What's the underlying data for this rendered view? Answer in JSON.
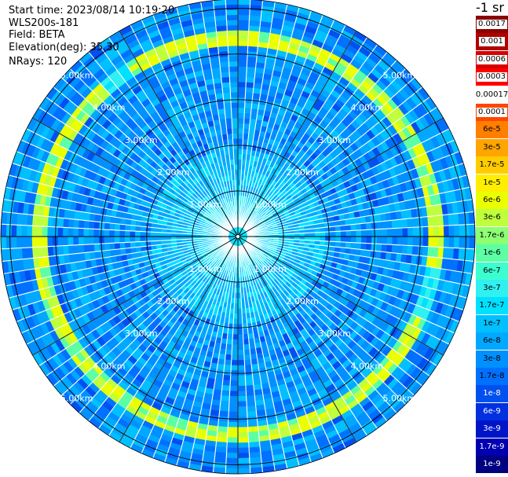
{
  "header": {
    "start_time": "Start time: 2023/08/14 10:19:20",
    "device": "WLS200s-181",
    "field": "Field: BETA",
    "elevation": "Elevation(deg): 35.30",
    "nrays": "NRays: 120"
  },
  "colorbar": {
    "unit": "-1 sr",
    "labels": [
      "0.0017",
      "0.001",
      "0.0006",
      "0.0003",
      "0.00017",
      "0.0001",
      "6e-5",
      "3e-5",
      "1.7e-5",
      "1e-5",
      "6e-6",
      "3e-6",
      "1.7e-6",
      "1e-6",
      "6e-7",
      "3e-7",
      "1.7e-7",
      "1e-7",
      "6e-8",
      "3e-8",
      "1.7e-8",
      "1e-8",
      "6e-9",
      "3e-9",
      "1.7e-9",
      "1e-9"
    ],
    "colors": [
      "#8b0000",
      "#b00000",
      "#d80000",
      "#ff0000",
      "#ffffff",
      "#ff4500",
      "#ff7f00",
      "#ffa500",
      "#ffcc00",
      "#ffee00",
      "#eaff00",
      "#bfff3c",
      "#8cff73",
      "#5cffa3",
      "#3cffd0",
      "#30f0f0",
      "#00e0ff",
      "#00c0ff",
      "#00a8ff",
      "#0090ff",
      "#0070ff",
      "#0050f0",
      "#0030e0",
      "#0015c8",
      "#0000b0",
      "#000080"
    ],
    "text_colors": [
      "#ffffff",
      "#ffffff",
      "#ffffff",
      "#ffffff",
      "#000000",
      "#ffffff",
      "#000000",
      "#000000",
      "#000000",
      "#000000",
      "#000000",
      "#000000",
      "#000000",
      "#000000",
      "#000000",
      "#000000",
      "#000000",
      "#000000",
      "#000000",
      "#000000",
      "#000000",
      "#ffffff",
      "#ffffff",
      "#ffffff",
      "#ffffff",
      "#ffffff"
    ]
  },
  "chart_data": {
    "type": "heatmap",
    "projection": "polar PPI",
    "rays": 120,
    "max_range_km": 5.2,
    "range_rings_km": [
      1,
      2,
      3,
      4,
      5
    ],
    "ring_labels": [
      "1.00km",
      "2.00km",
      "3.00km",
      "4.00km",
      "5.00km"
    ],
    "radial_lines_every_deg": 30,
    "features": [
      {
        "description": "enhanced backscatter ring",
        "range_km_min": 4.2,
        "range_km_max": 4.5,
        "level": "3e-6"
      },
      {
        "description": "near-field region",
        "range_km_min": 0,
        "range_km_max": 1.9,
        "level": "1.7e-7"
      },
      {
        "description": "background",
        "level": "1e-8"
      }
    ]
  }
}
